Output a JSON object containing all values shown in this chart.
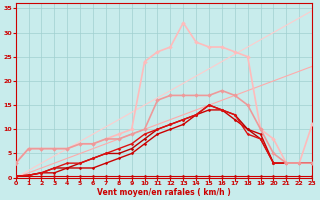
{
  "xlabel": "Vent moyen/en rafales ( km/h )",
  "xlim": [
    0,
    23
  ],
  "ylim": [
    0,
    36
  ],
  "xticks": [
    0,
    1,
    2,
    3,
    4,
    5,
    6,
    7,
    8,
    9,
    10,
    11,
    12,
    13,
    14,
    15,
    16,
    17,
    18,
    19,
    20,
    21,
    22,
    23
  ],
  "yticks": [
    0,
    5,
    10,
    15,
    20,
    25,
    30,
    35
  ],
  "bg_color": "#c8ecec",
  "grid_color": "#a0d0d0",
  "lines": [
    {
      "x": [
        0,
        1,
        2,
        3,
        4,
        5,
        6,
        7,
        8,
        9,
        10,
        11,
        12,
        13,
        14,
        15,
        16,
        17,
        18,
        19,
        20,
        21,
        22,
        23
      ],
      "y": [
        0.3,
        0.3,
        0.3,
        0.3,
        0.3,
        0.3,
        0.3,
        0.3,
        0.3,
        0.3,
        0.3,
        0.3,
        0.3,
        0.3,
        0.3,
        0.3,
        0.3,
        0.3,
        0.3,
        0.3,
        0.3,
        0.3,
        0.3,
        0.3
      ],
      "color": "#cc0000",
      "lw": 0.8,
      "marker": "D",
      "ms": 1.5
    },
    {
      "x": [
        0,
        1,
        2,
        3,
        4,
        5,
        6,
        7,
        8,
        9,
        10,
        11,
        12,
        13,
        14,
        15,
        16,
        17,
        18,
        19,
        20,
        21,
        22,
        23
      ],
      "y": [
        0.3,
        0.5,
        1,
        1,
        2,
        2,
        2,
        3,
        4,
        5,
        7,
        9,
        10,
        11,
        13,
        14,
        14,
        12,
        10,
        9,
        3,
        3,
        3,
        3
      ],
      "color": "#cc0000",
      "lw": 1.0,
      "marker": "D",
      "ms": 1.5
    },
    {
      "x": [
        0,
        1,
        2,
        3,
        4,
        5,
        6,
        7,
        8,
        9,
        10,
        11,
        12,
        13,
        14,
        15,
        16,
        17,
        18,
        19,
        20,
        21,
        22,
        23
      ],
      "y": [
        0.3,
        0.5,
        1,
        2,
        2,
        3,
        4,
        5,
        5,
        6,
        8,
        10,
        11,
        12,
        13,
        15,
        14,
        13,
        10,
        8,
        3,
        3,
        3,
        3
      ],
      "color": "#bb0000",
      "lw": 1.0,
      "marker": "D",
      "ms": 1.5
    },
    {
      "x": [
        0,
        1,
        2,
        3,
        4,
        5,
        6,
        7,
        8,
        9,
        10,
        11,
        12,
        13,
        14,
        15,
        16,
        17,
        18,
        19,
        20,
        21,
        22,
        23
      ],
      "y": [
        0.3,
        0.5,
        1,
        2,
        3,
        3,
        4,
        5,
        6,
        7,
        9,
        10,
        11,
        12,
        13,
        15,
        14,
        13,
        9,
        8,
        3,
        3,
        3,
        3
      ],
      "color": "#dd1111",
      "lw": 1.0,
      "marker": "D",
      "ms": 1.5
    },
    {
      "x": [
        0,
        1,
        2,
        3,
        4,
        5,
        6,
        7,
        8,
        9,
        10,
        11,
        12,
        13,
        14,
        15,
        16,
        17,
        18,
        19,
        20,
        21,
        22,
        23
      ],
      "y": [
        0,
        1,
        2,
        3,
        4,
        5,
        6,
        7,
        8,
        9,
        10,
        11,
        12,
        13,
        14,
        15,
        16,
        17,
        18,
        19,
        20,
        21,
        22,
        23
      ],
      "color": "#ffaaaa",
      "lw": 0.8,
      "marker": null,
      "ms": 0
    },
    {
      "x": [
        0,
        1,
        2,
        3,
        4,
        5,
        6,
        7,
        8,
        9,
        10,
        11,
        12,
        13,
        14,
        15,
        16,
        17,
        18,
        19,
        20,
        21,
        22,
        23
      ],
      "y": [
        0,
        1.5,
        3,
        4.5,
        6,
        7.5,
        9,
        10.5,
        12,
        13.5,
        15,
        16.5,
        18,
        19.5,
        21,
        22.5,
        24,
        25.5,
        27,
        28.5,
        30,
        31.5,
        33,
        34.5
      ],
      "color": "#ffcccc",
      "lw": 0.8,
      "marker": null,
      "ms": 0
    },
    {
      "x": [
        0,
        1,
        2,
        3,
        4,
        5,
        6,
        7,
        8,
        9,
        10,
        11,
        12,
        13,
        14,
        15,
        16,
        17,
        18,
        19,
        20,
        21,
        22,
        23
      ],
      "y": [
        3,
        6,
        6,
        6,
        6,
        7,
        7,
        8,
        9,
        10,
        24,
        26,
        27,
        32,
        28,
        27,
        27,
        26,
        25,
        10,
        8,
        3,
        3,
        11
      ],
      "color": "#ffbbbb",
      "lw": 1.2,
      "marker": "D",
      "ms": 2.0
    },
    {
      "x": [
        0,
        1,
        2,
        3,
        4,
        5,
        6,
        7,
        8,
        9,
        10,
        11,
        12,
        13,
        14,
        15,
        16,
        17,
        18,
        19,
        20,
        21,
        22,
        23
      ],
      "y": [
        3,
        6,
        6,
        6,
        6,
        7,
        7,
        8,
        8,
        9,
        10,
        16,
        17,
        17,
        17,
        17,
        18,
        17,
        15,
        10,
        5,
        3,
        3,
        3
      ],
      "color": "#ee9999",
      "lw": 1.2,
      "marker": "D",
      "ms": 2.0
    }
  ]
}
